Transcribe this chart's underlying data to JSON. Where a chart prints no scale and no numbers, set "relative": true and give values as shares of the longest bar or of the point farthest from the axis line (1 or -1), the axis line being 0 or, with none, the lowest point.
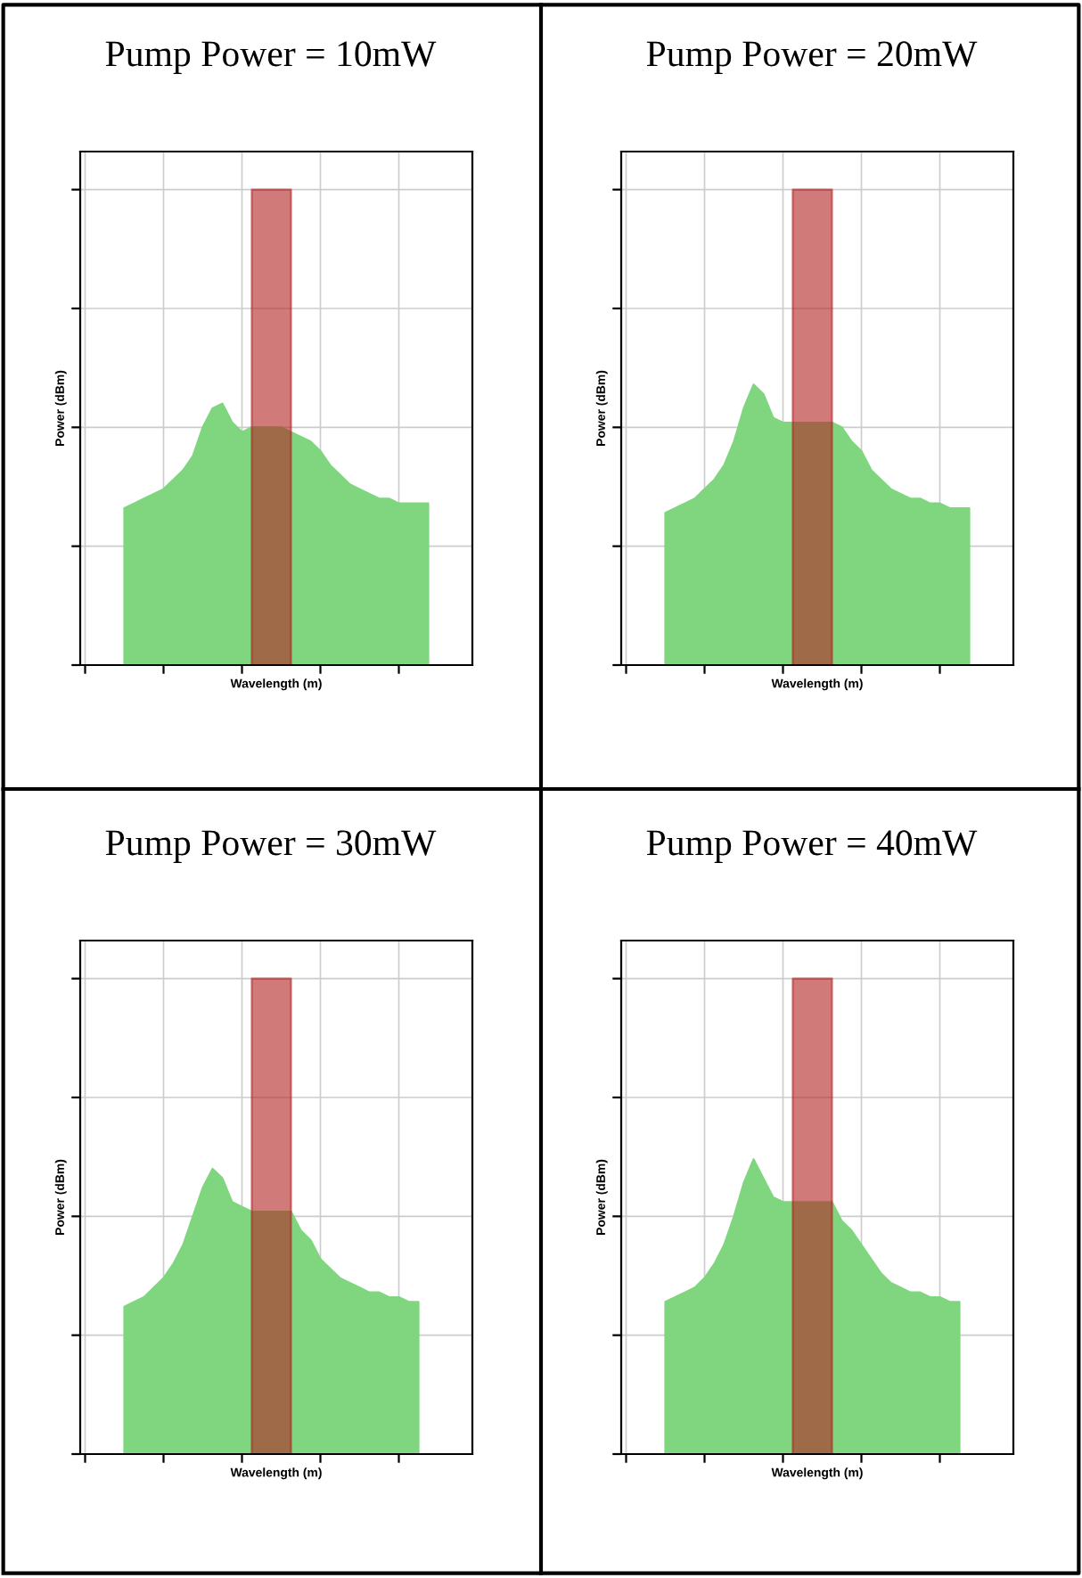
{
  "chart_data": [
    {
      "type": "area",
      "title": "Pump Power = 10mW",
      "xlabel": "Wavelength (m)",
      "ylabel": "Power (dBm)",
      "relative": true,
      "grid": true,
      "tick_labels": false,
      "categories": [
        null,
        null,
        null,
        null,
        null,
        null,
        null,
        null,
        null,
        null,
        null,
        null,
        null,
        null,
        null,
        null,
        null,
        null,
        null,
        null,
        null,
        null,
        null,
        null,
        null,
        null,
        null,
        null,
        null,
        null,
        null,
        null,
        null,
        null,
        null,
        null,
        null,
        null,
        null,
        null
      ],
      "series": [
        {
          "color": "#7fd67f",
          "values": [
            null,
            null,
            null,
            null,
            0.33,
            0.34,
            0.35,
            0.36,
            0.37,
            0.39,
            0.41,
            0.44,
            0.5,
            0.54,
            0.55,
            0.51,
            0.49,
            0.5,
            0.5,
            0.5,
            0.5,
            0.49,
            0.48,
            0.47,
            0.45,
            0.42,
            0.4,
            0.38,
            0.37,
            0.36,
            0.35,
            0.35,
            0.34,
            0.34,
            0.34,
            0.34,
            null,
            null,
            null,
            null
          ]
        },
        {
          "color": "#b22222",
          "values": [
            null,
            null,
            null,
            null,
            null,
            null,
            null,
            null,
            null,
            null,
            null,
            null,
            null,
            null,
            null,
            null,
            null,
            1,
            1,
            1,
            1,
            1,
            null,
            null,
            null,
            null,
            null,
            null,
            null,
            null,
            null,
            null,
            null,
            null,
            null,
            null,
            null,
            null,
            null,
            null
          ]
        }
      ]
    },
    {
      "type": "area",
      "title": "Pump Power = 20mW",
      "xlabel": "Wavelength (m)",
      "ylabel": "Power (dBm)",
      "relative": true,
      "grid": true,
      "tick_labels": false,
      "categories": [
        null,
        null,
        null,
        null,
        null,
        null,
        null,
        null,
        null,
        null,
        null,
        null,
        null,
        null,
        null,
        null,
        null,
        null,
        null,
        null,
        null,
        null,
        null,
        null,
        null,
        null,
        null,
        null,
        null,
        null,
        null,
        null,
        null,
        null,
        null,
        null,
        null,
        null,
        null,
        null
      ],
      "series": [
        {
          "color": "#7fd67f",
          "values": [
            null,
            null,
            null,
            null,
            0.32,
            0.33,
            0.34,
            0.35,
            0.37,
            0.39,
            0.42,
            0.47,
            0.54,
            0.59,
            0.57,
            0.52,
            0.51,
            0.51,
            0.51,
            0.51,
            0.51,
            0.51,
            0.5,
            0.47,
            0.45,
            0.41,
            0.39,
            0.37,
            0.36,
            0.35,
            0.35,
            0.34,
            0.34,
            0.33,
            0.33,
            0.33,
            null,
            null,
            null,
            null
          ]
        },
        {
          "color": "#b22222",
          "values": [
            null,
            null,
            null,
            null,
            null,
            null,
            null,
            null,
            null,
            null,
            null,
            null,
            null,
            null,
            null,
            null,
            null,
            1,
            1,
            1,
            1,
            1,
            null,
            null,
            null,
            null,
            null,
            null,
            null,
            null,
            null,
            null,
            null,
            null,
            null,
            null,
            null,
            null,
            null,
            null
          ]
        }
      ]
    },
    {
      "type": "area",
      "title": "Pump Power = 30mW",
      "xlabel": "Wavelength (m)",
      "ylabel": "Power (dBm)",
      "relative": true,
      "grid": true,
      "tick_labels": false,
      "categories": [
        null,
        null,
        null,
        null,
        null,
        null,
        null,
        null,
        null,
        null,
        null,
        null,
        null,
        null,
        null,
        null,
        null,
        null,
        null,
        null,
        null,
        null,
        null,
        null,
        null,
        null,
        null,
        null,
        null,
        null,
        null,
        null,
        null,
        null,
        null,
        null,
        null,
        null,
        null,
        null
      ],
      "series": [
        {
          "color": "#7fd67f",
          "values": [
            null,
            null,
            null,
            null,
            0.31,
            0.32,
            0.33,
            0.35,
            0.37,
            0.4,
            0.44,
            0.5,
            0.56,
            0.6,
            0.58,
            0.53,
            0.52,
            0.51,
            0.51,
            0.51,
            0.51,
            0.51,
            0.47,
            0.45,
            0.41,
            0.39,
            0.37,
            0.36,
            0.35,
            0.34,
            0.34,
            0.33,
            0.33,
            0.32,
            0.32,
            null,
            null,
            null,
            null,
            null
          ]
        },
        {
          "color": "#b22222",
          "values": [
            null,
            null,
            null,
            null,
            null,
            null,
            null,
            null,
            null,
            null,
            null,
            null,
            null,
            null,
            null,
            null,
            null,
            1,
            1,
            1,
            1,
            1,
            null,
            null,
            null,
            null,
            null,
            null,
            null,
            null,
            null,
            null,
            null,
            null,
            null,
            null,
            null,
            null,
            null,
            null
          ]
        }
      ]
    },
    {
      "type": "area",
      "title": "Pump Power = 40mW",
      "xlabel": "Wavelength (m)",
      "ylabel": "Power (dBm)",
      "relative": true,
      "grid": true,
      "tick_labels": false,
      "categories": [
        null,
        null,
        null,
        null,
        null,
        null,
        null,
        null,
        null,
        null,
        null,
        null,
        null,
        null,
        null,
        null,
        null,
        null,
        null,
        null,
        null,
        null,
        null,
        null,
        null,
        null,
        null,
        null,
        null,
        null,
        null,
        null,
        null,
        null,
        null,
        null,
        null,
        null,
        null,
        null
      ],
      "series": [
        {
          "color": "#7fd67f",
          "values": [
            null,
            null,
            null,
            null,
            0.32,
            0.33,
            0.34,
            0.35,
            0.37,
            0.4,
            0.44,
            0.5,
            0.57,
            0.62,
            0.58,
            0.54,
            0.53,
            0.53,
            0.53,
            0.53,
            0.53,
            0.53,
            0.49,
            0.47,
            0.44,
            0.41,
            0.38,
            0.36,
            0.35,
            0.34,
            0.34,
            0.33,
            0.33,
            0.32,
            0.32,
            null,
            null,
            null,
            null,
            null
          ]
        },
        {
          "color": "#b22222",
          "values": [
            null,
            null,
            null,
            null,
            null,
            null,
            null,
            null,
            null,
            null,
            null,
            null,
            null,
            null,
            null,
            null,
            null,
            1,
            1,
            1,
            1,
            1,
            null,
            null,
            null,
            null,
            null,
            null,
            null,
            null,
            null,
            null,
            null,
            null,
            null,
            null,
            null,
            null,
            null,
            null
          ]
        }
      ]
    }
  ]
}
